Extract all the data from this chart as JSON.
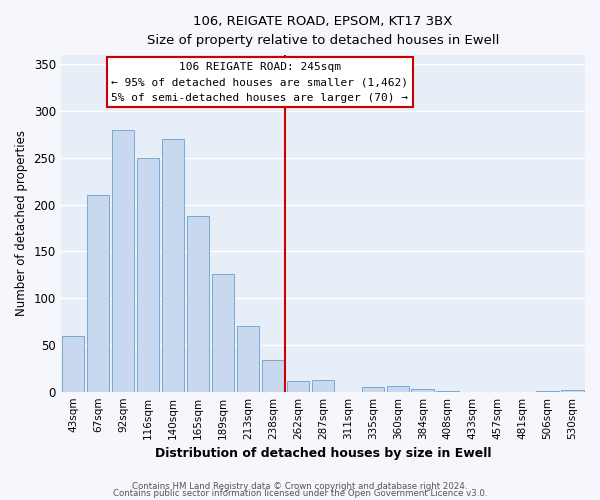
{
  "title_line1": "106, REIGATE ROAD, EPSOM, KT17 3BX",
  "title_line2": "Size of property relative to detached houses in Ewell",
  "xlabel": "Distribution of detached houses by size in Ewell",
  "ylabel": "Number of detached properties",
  "bar_labels": [
    "43sqm",
    "67sqm",
    "92sqm",
    "116sqm",
    "140sqm",
    "165sqm",
    "189sqm",
    "213sqm",
    "238sqm",
    "262sqm",
    "287sqm",
    "311sqm",
    "335sqm",
    "360sqm",
    "384sqm",
    "408sqm",
    "433sqm",
    "457sqm",
    "481sqm",
    "506sqm",
    "530sqm"
  ],
  "bar_values": [
    60,
    210,
    280,
    250,
    270,
    188,
    126,
    70,
    34,
    11,
    13,
    0,
    5,
    6,
    3,
    1,
    0,
    0,
    0,
    1,
    2
  ],
  "bar_color": "#c8d8ee",
  "bar_edge_color": "#7aaad0",
  "vline_x": 8.5,
  "vline_color": "#cc0000",
  "annotation_title": "106 REIGATE ROAD: 245sqm",
  "annotation_line1": "← 95% of detached houses are smaller (1,462)",
  "annotation_line2": "5% of semi-detached houses are larger (70) →",
  "annotation_box_facecolor": "#ffffff",
  "annotation_box_edge": "#cc0000",
  "ylim": [
    0,
    360
  ],
  "yticks": [
    0,
    50,
    100,
    150,
    200,
    250,
    300,
    350
  ],
  "footer_line1": "Contains HM Land Registry data © Crown copyright and database right 2024.",
  "footer_line2": "Contains public sector information licensed under the Open Government Licence v3.0.",
  "plot_bg_color": "#e8eef8",
  "fig_bg_color": "#f5f7fc",
  "grid_color": "#ffffff"
}
